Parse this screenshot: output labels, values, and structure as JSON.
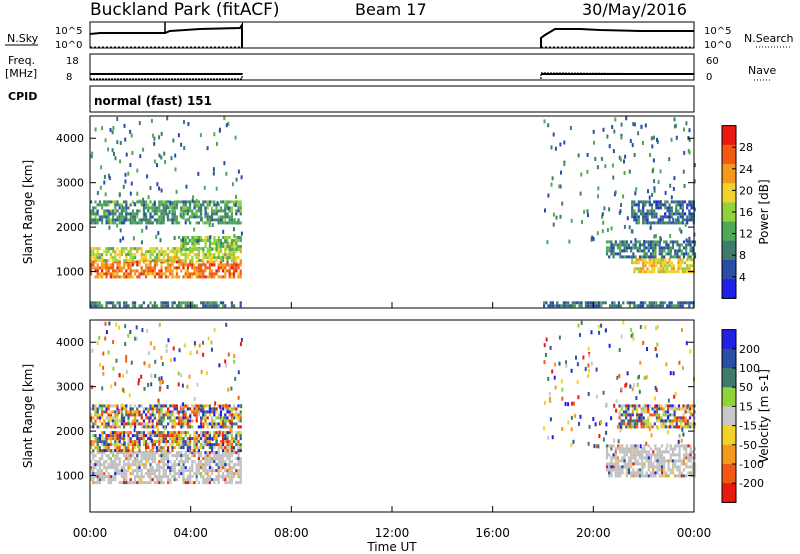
{
  "header": {
    "station": "Buckland Park (fitACF)",
    "beam": "Beam 17",
    "date": "30/May/2016"
  },
  "top_panels": {
    "nsky_label": "N.Sky",
    "nsky_ticks": [
      "10^5",
      "10^0"
    ],
    "nsearch_label": "N.Search",
    "nsearch_ticks": [
      "10^5",
      "10^0"
    ],
    "freq_label": "Freq.",
    "freq_unit": "[MHz]",
    "freq_ticks": [
      "18",
      "8"
    ],
    "nave_label": "Nave",
    "nave_ticks": [
      "60",
      "0"
    ],
    "cpid_label": "CPID",
    "cpid_text": "normal (fast) 151"
  },
  "colors": {
    "power_scale": [
      "#1f1fe6",
      "#2a4ea8",
      "#3f7a6e",
      "#4fa856",
      "#8fd23a",
      "#f0d22a",
      "#f39a1e",
      "#f05a14",
      "#e81a10"
    ],
    "velocity_scale": [
      "#e81a10",
      "#f05a14",
      "#f39a1e",
      "#f0d22a",
      "#c8c8c8",
      "#8fd23a",
      "#3f7a6e",
      "#2a4ea8",
      "#1f1fe6"
    ]
  },
  "chart_data": [
    {
      "type": "heatmap",
      "name": "power",
      "xlabel": "Time UT",
      "ylabel": "Slant Range [km]",
      "x_ticks": [
        "00:00",
        "04:00",
        "08:00",
        "12:00",
        "16:00",
        "20:00",
        "00:00"
      ],
      "xlim_hours": [
        0,
        24
      ],
      "y_ticks": [
        "4000",
        "3000",
        "2000",
        "1000"
      ],
      "ylim": [
        180,
        4500
      ],
      "colorbar_label": "Power [dB]",
      "colorbar_ticks": [
        "28",
        "24",
        "20",
        "16",
        "12",
        "8",
        "4"
      ],
      "crange": [
        0,
        32
      ],
      "data_windows_hours": [
        [
          0,
          6
        ],
        [
          18,
          24
        ]
      ],
      "echo_regions": [
        {
          "t0": 0.0,
          "t1": 6.0,
          "r0": 900,
          "r1": 1250,
          "level": 26
        },
        {
          "t0": 0.0,
          "t1": 6.0,
          "r0": 1250,
          "r1": 1550,
          "level": 18
        },
        {
          "t0": 3.5,
          "t1": 6.0,
          "r0": 1500,
          "r1": 1800,
          "level": 14
        },
        {
          "t0": 0.0,
          "t1": 6.0,
          "r0": 2100,
          "r1": 2600,
          "level": 10
        },
        {
          "t0": 0.0,
          "t1": 6.0,
          "r0": 200,
          "r1": 330,
          "level": 8
        },
        {
          "t0": 21.5,
          "t1": 24.0,
          "r0": 1000,
          "r1": 1300,
          "level": 20
        },
        {
          "t0": 20.5,
          "t1": 24.0,
          "r0": 1300,
          "r1": 1700,
          "level": 8
        },
        {
          "t0": 21.5,
          "t1": 24.0,
          "r0": 2100,
          "r1": 2600,
          "level": 6
        },
        {
          "t0": 18.0,
          "t1": 24.0,
          "r0": 200,
          "r1": 330,
          "level": 7
        }
      ]
    },
    {
      "type": "heatmap",
      "name": "velocity",
      "xlabel": "Time UT",
      "ylabel": "Slant Range [km]",
      "x_ticks": [
        "00:00",
        "04:00",
        "08:00",
        "12:00",
        "16:00",
        "20:00",
        "00:00"
      ],
      "xlim_hours": [
        0,
        24
      ],
      "y_ticks": [
        "4000",
        "3000",
        "2000",
        "1000"
      ],
      "ylim": [
        180,
        4500
      ],
      "colorbar_label": "Velocity [m s-1]",
      "colorbar_ticks": [
        "200",
        "100",
        "50",
        "15",
        "-15",
        "-50",
        "-100",
        "-200"
      ],
      "crange": [
        -250,
        250
      ],
      "data_windows_hours": [
        [
          0,
          6
        ],
        [
          18,
          24
        ]
      ],
      "ground_scatter_color": "#c0c0c0",
      "echo_regions": [
        {
          "t0": 0.0,
          "t1": 6.0,
          "r0": 850,
          "r1": 1550,
          "ground": true
        },
        {
          "t0": 0.0,
          "t1": 6.0,
          "r0": 1550,
          "r1": 2000,
          "ground": false
        },
        {
          "t0": 0.0,
          "t1": 6.0,
          "r0": 2100,
          "r1": 2600,
          "ground": false
        },
        {
          "t0": 20.5,
          "t1": 24.0,
          "r0": 1000,
          "r1": 1700,
          "ground": true
        },
        {
          "t0": 21.0,
          "t1": 24.0,
          "r0": 2100,
          "r1": 2600,
          "ground": false
        }
      ]
    }
  ]
}
